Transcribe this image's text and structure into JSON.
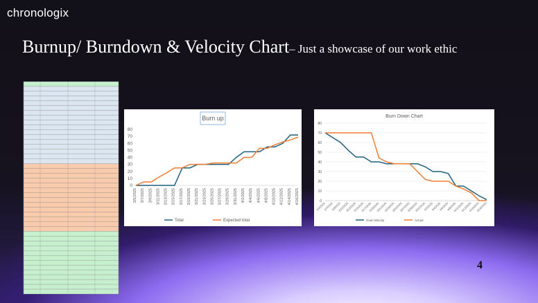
{
  "brand": "chronologix",
  "title": "Burnup/ Burndown & Velocity Chart",
  "subtitle": "– Just a showcase of our work ethic",
  "page_number": "4",
  "chart_data": [
    {
      "type": "line",
      "title": "Burn up",
      "categories": [
        "3/5/2025",
        "3/7/2025",
        "3/9/2025",
        "3/11/2025",
        "3/13/2025",
        "3/15/2025",
        "3/17/2025",
        "3/19/2025",
        "3/21/2025",
        "3/23/2025",
        "3/25/2025",
        "3/27/2025",
        "3/29/2025",
        "3/31/2025",
        "4/2/2025",
        "4/4/2025",
        "4/6/2025",
        "4/8/2025",
        "4/10/2025",
        "4/12/2025",
        "4/14/2025",
        "4/16/2025"
      ],
      "series": [
        {
          "name": "Total",
          "color": "#1f5f7e",
          "values": [
            0,
            0,
            0,
            0,
            0,
            0,
            25,
            25,
            30,
            30,
            30,
            30,
            30,
            40,
            48,
            48,
            48,
            55,
            55,
            60,
            72,
            72
          ]
        },
        {
          "name": "Expected total",
          "color": "#ed7d31",
          "values": [
            0,
            5,
            5,
            12,
            18,
            25,
            25,
            30,
            30,
            30,
            32,
            32,
            32,
            32,
            40,
            40,
            53,
            53,
            58,
            62,
            65,
            69
          ]
        }
      ],
      "ylim": [
        0,
        80
      ],
      "yticks": [
        0,
        10,
        20,
        30,
        40,
        50,
        60,
        70,
        80
      ],
      "grid": false,
      "legend": "bottom"
    },
    {
      "type": "line",
      "title": "Burn Down Chart",
      "categories": [
        "3/5/2025",
        "3/7/2025",
        "3/9/2025",
        "3/11/2025",
        "3/13/2025",
        "3/15/2025",
        "3/17/2025",
        "3/19/2025",
        "3/21/2025",
        "3/23/2025",
        "3/25/2025",
        "3/27/2025",
        "3/29/2025",
        "3/31/2025",
        "4/2/2025",
        "4/4/2025",
        "4/6/2025",
        "4/8/2025",
        "4/10/2025",
        "4/12/2025",
        "4/14/2025",
        "4/16/2025"
      ],
      "series": [
        {
          "name": "Goal Velocity",
          "color": "#1f5f7e",
          "values": [
            70,
            65,
            60,
            52,
            45,
            45,
            40,
            40,
            38,
            38,
            38,
            38,
            38,
            35,
            30,
            30,
            28,
            15,
            15,
            10,
            5,
            1
          ]
        },
        {
          "name": "Actual",
          "color": "#ed7d31",
          "values": [
            70,
            70,
            70,
            70,
            70,
            70,
            70,
            44,
            40,
            38,
            38,
            38,
            30,
            22,
            20,
            20,
            20,
            15,
            12,
            8,
            0,
            0
          ]
        }
      ],
      "ylim": [
        0,
        80
      ],
      "yticks": [
        0,
        10,
        20,
        30,
        40,
        50,
        60,
        70,
        80
      ],
      "grid": true,
      "legend": "bottom"
    }
  ]
}
